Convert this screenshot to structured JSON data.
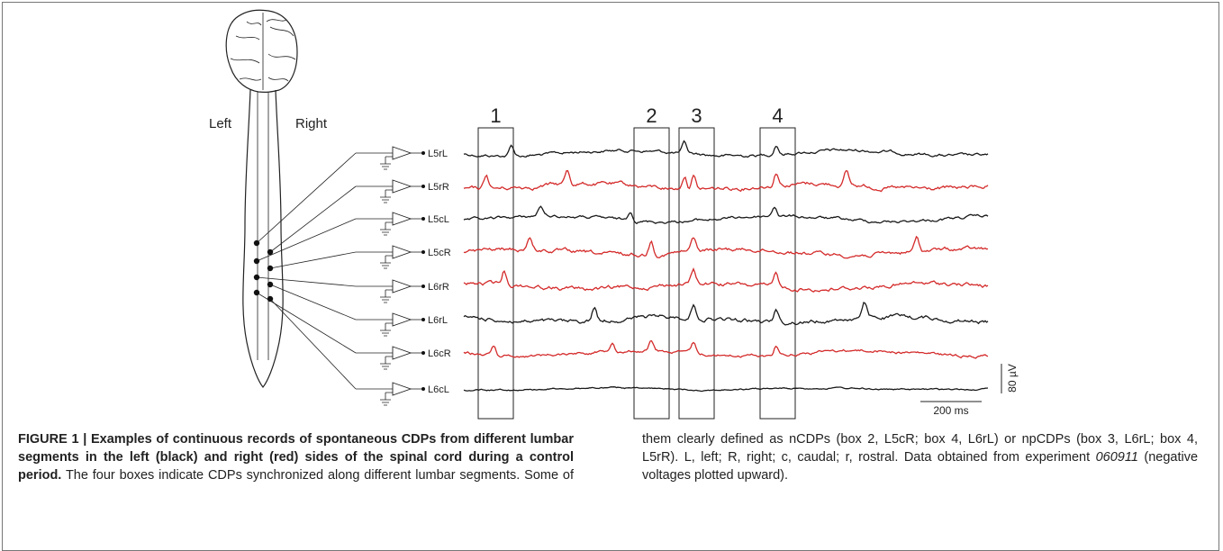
{
  "figure": {
    "side_labels": {
      "left": "Left",
      "right": "Right"
    },
    "boxes": [
      "1",
      "2",
      "3",
      "4"
    ],
    "channels": [
      {
        "label": "L5rL",
        "color": "#1a1a1a"
      },
      {
        "label": "L5rR",
        "color": "#d42a2a"
      },
      {
        "label": "L5cL",
        "color": "#1a1a1a"
      },
      {
        "label": "L5cR",
        "color": "#d42a2a"
      },
      {
        "label": "L6rR",
        "color": "#d42a2a"
      },
      {
        "label": "L6rL",
        "color": "#1a1a1a"
      },
      {
        "label": "L6cR",
        "color": "#d42a2a"
      },
      {
        "label": "L6cL",
        "color": "#1a1a1a"
      }
    ],
    "scale": {
      "voltage": "80 µV",
      "time": "200 ms"
    }
  },
  "caption": {
    "label": "FIGURE 1 | Examples of continuous records of spontaneous CDPs from different lumbar segments in the left (black) and right (red) sides of the spinal cord during a control period.",
    "text_before": "The four boxes indicate CDPs synchronized along different lumbar segments. Some of them clearly defined as nCDPs (box 2, L5cR; box 4, L6rL) or npCDPs (box 3, L6rL; box 4, L5rR). L, left; R, right; c, caudal; r, rostral. Data obtained from experiment",
    "experiment": "060911",
    "text_after": "(negative voltages plotted upward)."
  }
}
